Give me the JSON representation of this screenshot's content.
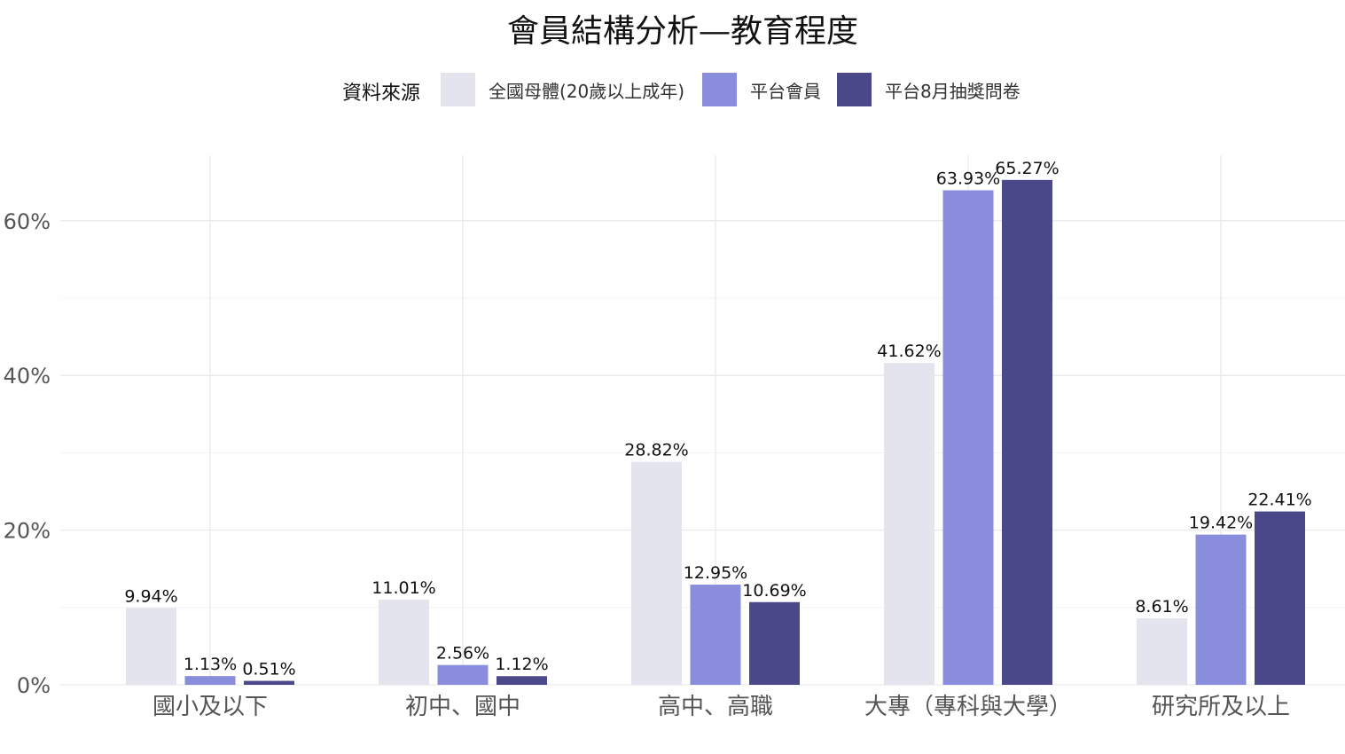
{
  "chart_data": {
    "type": "bar",
    "title": "會員結構分析—教育程度",
    "xlabel": "",
    "ylabel": "",
    "legend_title": "資料來源",
    "legend_position": "top",
    "grid": true,
    "ylim": [
      0,
      68
    ],
    "yticks": [
      0,
      20,
      40,
      60
    ],
    "ytick_labels": [
      "0%",
      "20%",
      "40%",
      "60%"
    ],
    "categories": [
      "國小及以下",
      "初中、國中",
      "高中、高職",
      "大專（專科與大學）",
      "研究所及以上"
    ],
    "series": [
      {
        "name": "全國母體(20歲以上成年)",
        "color": "#e4e4ef",
        "values": [
          9.94,
          11.01,
          28.82,
          41.62,
          8.61
        ],
        "labels": [
          "9.94%",
          "11.01%",
          "28.82%",
          "41.62%",
          "8.61%"
        ]
      },
      {
        "name": "平台會員",
        "color": "#8a8ddb",
        "values": [
          1.13,
          2.56,
          12.95,
          63.93,
          19.42
        ],
        "labels": [
          "1.13%",
          "2.56%",
          "12.95%",
          "63.93%",
          "19.42%"
        ]
      },
      {
        "name": "平台8月抽獎問卷",
        "color": "#4a4888",
        "values": [
          0.51,
          1.12,
          10.69,
          65.27,
          22.41
        ],
        "labels": [
          "0.51%",
          "1.12%",
          "10.69%",
          "65.27%",
          "22.41%"
        ]
      }
    ]
  }
}
